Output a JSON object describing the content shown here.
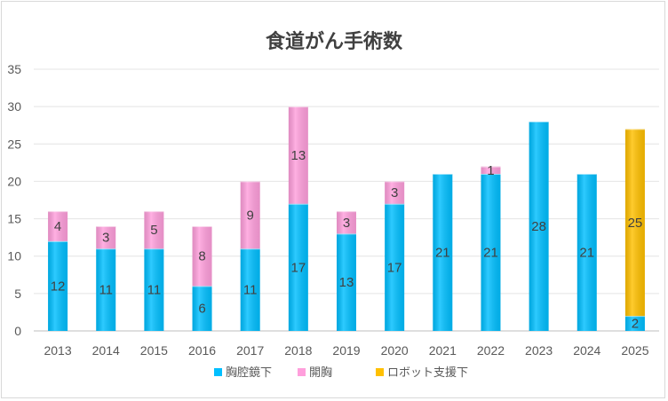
{
  "chart_data": {
    "type": "bar",
    "stacked": true,
    "title": "食道がん手術数",
    "categories": [
      "2013",
      "2014",
      "2015",
      "2016",
      "2017",
      "2018",
      "2019",
      "2020",
      "2021",
      "2022",
      "2023",
      "2024",
      "2025"
    ],
    "series": [
      {
        "name": "胸腔鏡下",
        "color": "#00bfff",
        "values": [
          12,
          11,
          11,
          6,
          11,
          17,
          13,
          17,
          21,
          21,
          28,
          21,
          2
        ]
      },
      {
        "name": "開胸",
        "color": "#ff9fdc",
        "values": [
          4,
          3,
          5,
          8,
          9,
          13,
          3,
          3,
          0,
          1,
          0,
          0,
          0
        ]
      },
      {
        "name": "ロボット支援下",
        "color": "#ffc000",
        "values": [
          0,
          0,
          0,
          0,
          0,
          0,
          0,
          0,
          0,
          0,
          0,
          0,
          25
        ]
      }
    ],
    "ylim": [
      0,
      35
    ],
    "yticks": [
      0,
      5,
      10,
      15,
      20,
      25,
      30,
      35
    ],
    "grid": true,
    "legend_position": "bottom"
  }
}
